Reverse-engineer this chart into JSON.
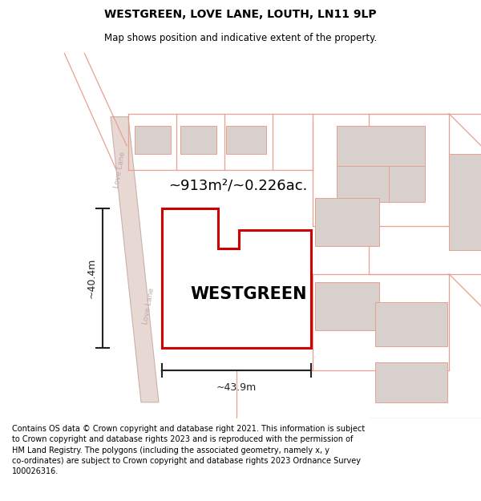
{
  "title": "WESTGREEN, LOVE LANE, LOUTH, LN11 9LP",
  "subtitle": "Map shows position and indicative extent of the property.",
  "footnote": "Contains OS data © Crown copyright and database right 2021. This information is subject\nto Crown copyright and database rights 2023 and is reproduced with the permission of\nHM Land Registry. The polygons (including the associated geometry, namely x, y\nco-ordinates) are subject to Crown copyright and database rights 2023 Ordnance Survey\n100026316.",
  "area_label": "~913m²/~0.226ac.",
  "property_label": "WESTGREEN",
  "width_label": "~43.9m",
  "height_label": "~40.4m",
  "road_label": "Love Lane",
  "map_bg": "#ffffff",
  "property_fill": "#ffffff",
  "property_edge": "#cc0000",
  "neighbor_fill": "#d8d0cc",
  "neighbor_edge_color": "#e8a090",
  "road_fill": "#e8d8d4",
  "road_edge": "#ccb0aa",
  "plot_edge": "#e8a090",
  "dim_color": "#222222"
}
